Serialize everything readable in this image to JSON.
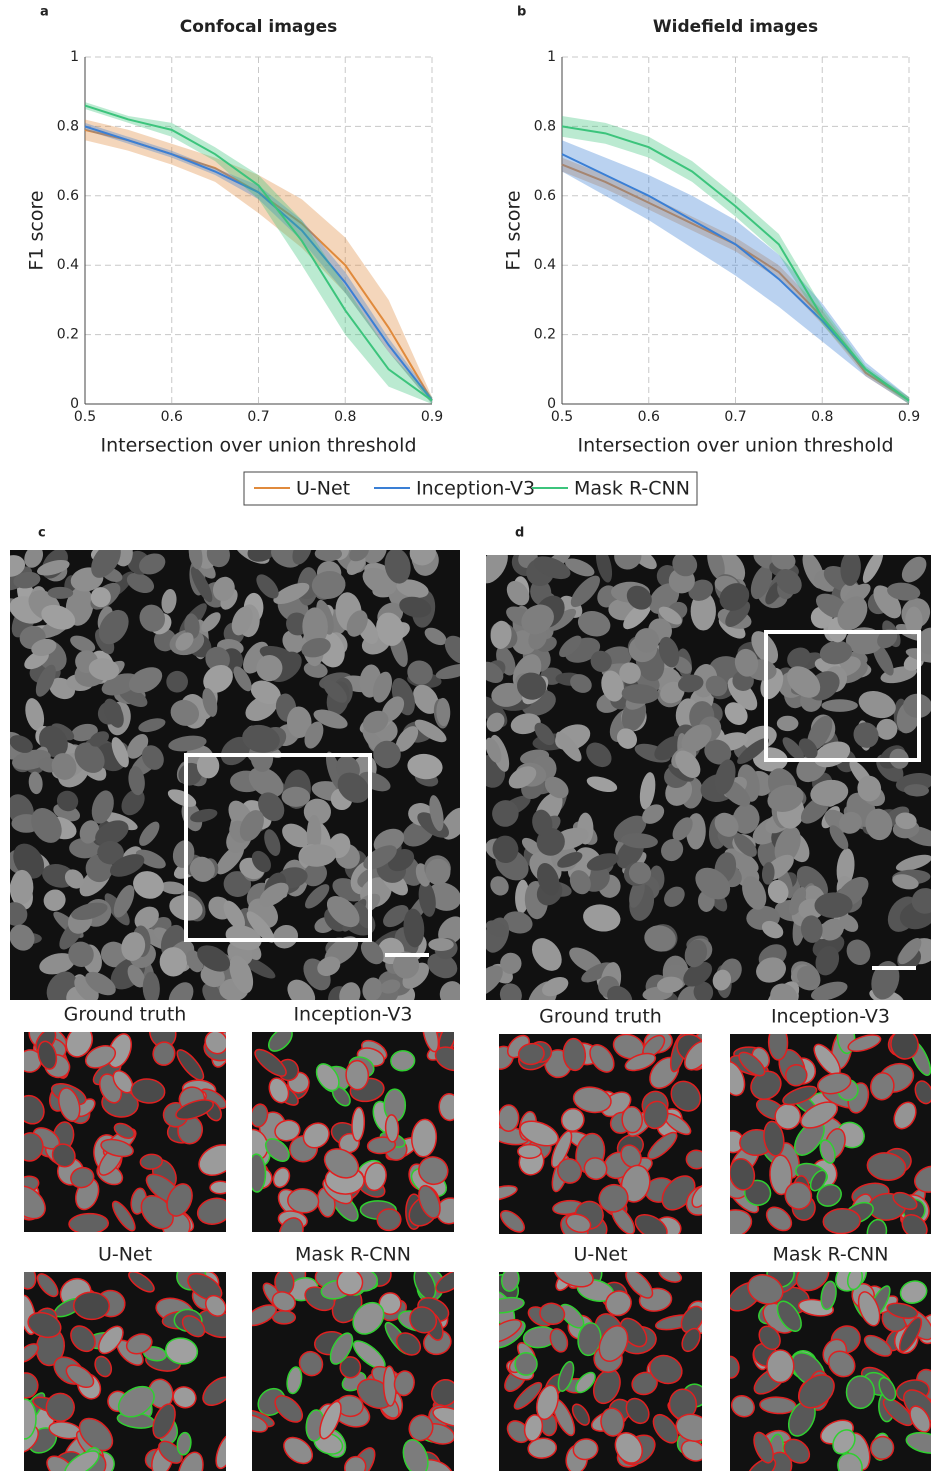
{
  "legend": {
    "series_names": [
      "U-Net",
      "Inception-V3",
      "Mask R-CNN"
    ],
    "colors": [
      "#e08a3c",
      "#3a7fd5",
      "#3cc47c"
    ]
  },
  "chart_data": [
    {
      "type": "line",
      "label": "a",
      "title": "Confocal images",
      "x_label": "Intersection over union threshold",
      "y_label": "F1 score",
      "x": [
        0.5,
        0.55,
        0.6,
        0.65,
        0.7,
        0.75,
        0.8,
        0.85,
        0.9
      ],
      "xlim": [
        0.5,
        0.9
      ],
      "xticks": [
        0.5,
        0.6,
        0.7,
        0.8,
        0.9
      ],
      "ylim": [
        0,
        1
      ],
      "yticks": [
        0,
        0.2,
        0.4,
        0.6,
        0.8,
        1
      ],
      "grid": true,
      "series": [
        {
          "values": [
            0.79,
            0.76,
            0.72,
            0.68,
            0.61,
            0.52,
            0.4,
            0.22,
            0.01
          ],
          "lower": [
            0.76,
            0.73,
            0.69,
            0.64,
            0.55,
            0.45,
            0.32,
            0.15,
            0.0
          ],
          "upper": [
            0.82,
            0.79,
            0.75,
            0.71,
            0.66,
            0.59,
            0.48,
            0.3,
            0.02
          ]
        },
        {
          "values": [
            0.8,
            0.76,
            0.72,
            0.67,
            0.61,
            0.5,
            0.35,
            0.17,
            0.01
          ],
          "lower": [
            0.79,
            0.75,
            0.71,
            0.66,
            0.59,
            0.47,
            0.32,
            0.15,
            0.0
          ],
          "upper": [
            0.81,
            0.77,
            0.73,
            0.68,
            0.63,
            0.53,
            0.38,
            0.19,
            0.02
          ]
        },
        {
          "values": [
            0.86,
            0.82,
            0.79,
            0.72,
            0.63,
            0.47,
            0.27,
            0.1,
            0.01
          ],
          "lower": [
            0.85,
            0.81,
            0.77,
            0.7,
            0.59,
            0.4,
            0.2,
            0.05,
            0.0
          ],
          "upper": [
            0.87,
            0.83,
            0.81,
            0.74,
            0.66,
            0.53,
            0.34,
            0.15,
            0.02
          ]
        }
      ]
    },
    {
      "type": "line",
      "label": "b",
      "title": "Widefield images",
      "x_label": "Intersection over union threshold",
      "y_label": "F1 score",
      "x": [
        0.5,
        0.55,
        0.6,
        0.65,
        0.7,
        0.75,
        0.8,
        0.85,
        0.9
      ],
      "xlim": [
        0.5,
        0.9
      ],
      "xticks": [
        0.5,
        0.6,
        0.7,
        0.8,
        0.9
      ],
      "ylim": [
        0,
        1
      ],
      "yticks": [
        0,
        0.2,
        0.4,
        0.6,
        0.8,
        1
      ],
      "grid": true,
      "series": [
        {
          "values": [
            0.69,
            0.64,
            0.58,
            0.52,
            0.46,
            0.38,
            0.25,
            0.09,
            0.01
          ],
          "lower": [
            0.67,
            0.62,
            0.56,
            0.5,
            0.44,
            0.36,
            0.23,
            0.08,
            0.0
          ],
          "upper": [
            0.71,
            0.66,
            0.6,
            0.54,
            0.48,
            0.4,
            0.27,
            0.1,
            0.02
          ]
        },
        {
          "values": [
            0.72,
            0.66,
            0.6,
            0.53,
            0.46,
            0.36,
            0.24,
            0.1,
            0.01
          ],
          "lower": [
            0.67,
            0.6,
            0.53,
            0.45,
            0.37,
            0.28,
            0.18,
            0.08,
            0.0
          ],
          "upper": [
            0.76,
            0.71,
            0.66,
            0.6,
            0.53,
            0.43,
            0.29,
            0.12,
            0.02
          ]
        },
        {
          "values": [
            0.8,
            0.78,
            0.74,
            0.67,
            0.57,
            0.46,
            0.25,
            0.1,
            0.01
          ],
          "lower": [
            0.77,
            0.75,
            0.71,
            0.64,
            0.54,
            0.43,
            0.23,
            0.09,
            0.0
          ],
          "upper": [
            0.83,
            0.81,
            0.77,
            0.7,
            0.6,
            0.49,
            0.28,
            0.11,
            0.02
          ]
        }
      ]
    }
  ],
  "panels": [
    {
      "label": "c",
      "captions": [
        "Ground truth",
        "Inception-V3",
        "U-Net",
        "Mask R-CNN"
      ]
    },
    {
      "label": "d",
      "captions": [
        "Ground truth",
        "Inception-V3",
        "U-Net",
        "Mask R-CNN"
      ]
    }
  ]
}
